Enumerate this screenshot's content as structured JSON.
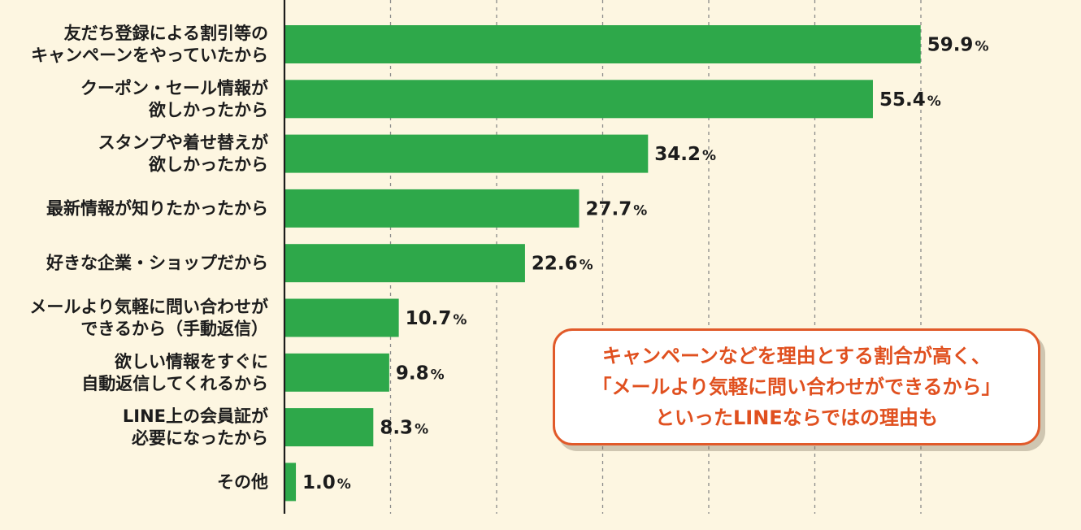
{
  "chart_data": {
    "type": "bar",
    "orientation": "horizontal",
    "categories": [
      [
        "友だち登録による割引等の",
        "キャンペーンをやっていたから"
      ],
      [
        "クーポン・セール情報が",
        "欲しかったから"
      ],
      [
        "スタンプや着せ替えが",
        "欲しかったから"
      ],
      [
        "最新情報が知りたかったから"
      ],
      [
        "好きな企業・ショップだから"
      ],
      [
        "メールより気軽に問い合わせが",
        "できるから（手動返信）"
      ],
      [
        "欲しい情報をすぐに",
        "自動返信してくれるから"
      ],
      [
        "LINE上の会員証が",
        "必要になったから"
      ],
      [
        "その他"
      ]
    ],
    "values": [
      59.9,
      55.4,
      34.2,
      27.7,
      22.6,
      10.7,
      9.8,
      8.3,
      1.0
    ],
    "value_labels": [
      "59.9",
      "55.4",
      "34.2",
      "27.7",
      "22.6",
      "10.7",
      "9.8",
      "8.3",
      "1.0"
    ],
    "unit": "%",
    "xlim": [
      0,
      60
    ],
    "grid": true,
    "bar_color": "#2ea84a"
  },
  "callout": {
    "lines": [
      "キャンペーンなどを理由とする割合が高く、",
      "「メールより気軽に問い合わせができるから」",
      "といったLINEならではの理由も"
    ],
    "color": "#e15a2a"
  }
}
